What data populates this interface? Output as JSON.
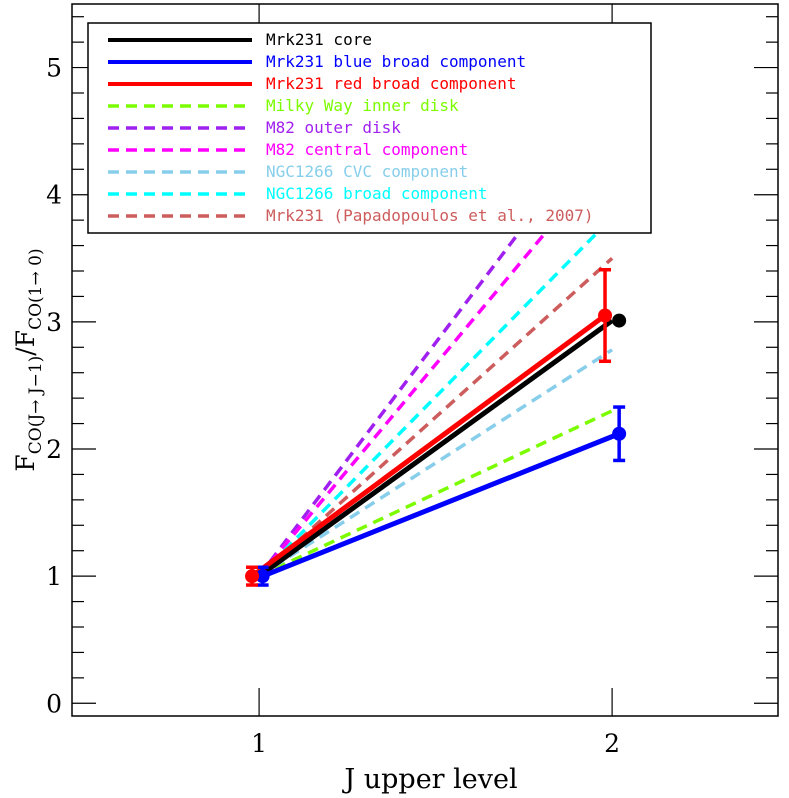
{
  "chart_data": {
    "type": "line",
    "title": "",
    "xlabel": "J upper level",
    "ylabel": {
      "base": "F",
      "num_sub": "CO(J→ J−1)",
      "den_sub": "CO(1→ 0)"
    },
    "xlim": [
      0.47,
      2.47
    ],
    "ylim": [
      -0.1,
      5.5
    ],
    "x_ticks": [
      "1",
      "2"
    ],
    "y_ticks": [
      "0",
      "1",
      "2",
      "3",
      "4",
      "5"
    ],
    "legend_position": "top-left",
    "series": [
      {
        "name": "Mrk231 core",
        "color": "#000000",
        "style": "solid",
        "x": [
          1,
          2
        ],
        "y": [
          1.0,
          3.01
        ],
        "marker_x": [
          2.02
        ],
        "marker_y": [
          3.01
        ],
        "err": [
          0
        ]
      },
      {
        "name": "Mrk231 blue broad component",
        "color": "#0000ff",
        "style": "solid",
        "x": [
          1.01,
          2.02
        ],
        "y": [
          1.0,
          2.12
        ],
        "marker_x": [
          1.01,
          2.02
        ],
        "marker_y": [
          1.0,
          2.12
        ],
        "err": [
          0.07,
          0.21
        ]
      },
      {
        "name": "Mrk231 red broad component",
        "color": "#ff0000",
        "style": "solid",
        "x": [
          0.98,
          1.98
        ],
        "y": [
          1.0,
          3.05
        ],
        "marker_x": [
          0.98,
          1.98
        ],
        "marker_y": [
          1.0,
          3.05
        ],
        "err": [
          0.07,
          0.36
        ]
      },
      {
        "name": "Milky Way inner disk",
        "color": "#7cfc00",
        "style": "dashed",
        "x": [
          1,
          2
        ],
        "y": [
          1.0,
          2.3
        ]
      },
      {
        "name": "M82 outer disk",
        "color": "#a020f0",
        "style": "dashed",
        "x": [
          1,
          2
        ],
        "y": [
          1.0,
          4.67
        ]
      },
      {
        "name": "M82 central component",
        "color": "#ff00ff",
        "style": "dashed",
        "x": [
          1,
          2
        ],
        "y": [
          1.0,
          4.33
        ]
      },
      {
        "name": "NGC1266 CVC component",
        "color": "#87ceeb",
        "style": "dashed",
        "x": [
          1,
          2
        ],
        "y": [
          1.0,
          2.78
        ]
      },
      {
        "name": "NGC1266 broad component",
        "color": "#00ffff",
        "style": "dashed",
        "x": [
          1,
          2
        ],
        "y": [
          1.0,
          3.82
        ]
      },
      {
        "name": "Mrk231 (Papadopoulos et al., 2007)",
        "color": "#cd5c5c",
        "style": "dashed",
        "x": [
          1,
          2
        ],
        "y": [
          1.0,
          3.5
        ]
      }
    ]
  }
}
